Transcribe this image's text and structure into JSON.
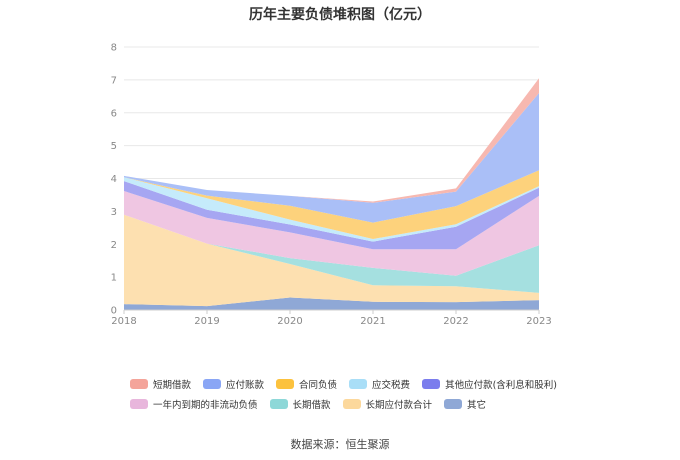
{
  "chart_data": {
    "type": "area",
    "stacked": true,
    "title": "历年主要负债堆积图（亿元）",
    "categories": [
      "2018",
      "2019",
      "2020",
      "2021",
      "2022",
      "2023"
    ],
    "ylim": [
      0,
      8
    ],
    "yticks": [
      "0",
      "1",
      "2",
      "3",
      "4",
      "5",
      "6",
      "7",
      "8"
    ],
    "grid": true,
    "legend_position": "bottom",
    "series": [
      {
        "name": "其它",
        "color": "#8fa8d6",
        "values": [
          0.18,
          0.12,
          0.38,
          0.25,
          0.24,
          0.3
        ]
      },
      {
        "name": "长期应付款合计",
        "color": "#fde0b0",
        "values": [
          2.72,
          1.9,
          1.02,
          0.5,
          0.48,
          0.22
        ]
      },
      {
        "name": "长期借款",
        "color": "#a5e0e0",
        "values": [
          0.0,
          0.0,
          0.18,
          0.53,
          0.32,
          1.45
        ]
      },
      {
        "name": "一年内到期的非流动负债",
        "color": "#efc6e2",
        "values": [
          0.72,
          0.78,
          0.78,
          0.57,
          0.81,
          1.5
        ]
      },
      {
        "name": "其他应付款(含利息和股利)",
        "color": "#a6a6f2",
        "values": [
          0.3,
          0.25,
          0.24,
          0.23,
          0.68,
          0.25
        ]
      },
      {
        "name": "应交税费",
        "color": "#c5ebfb",
        "values": [
          0.12,
          0.35,
          0.15,
          0.08,
          0.08,
          0.05
        ]
      },
      {
        "name": "合同负债",
        "color": "#fdd27c",
        "values": [
          0.0,
          0.08,
          0.42,
          0.5,
          0.55,
          0.48
        ]
      },
      {
        "name": "应付账款",
        "color": "#aabff7",
        "values": [
          0.04,
          0.17,
          0.3,
          0.6,
          0.44,
          2.35
        ]
      },
      {
        "name": "短期借款",
        "color": "#f7b8b0",
        "values": [
          0.0,
          0.0,
          0.0,
          0.04,
          0.1,
          0.45
        ]
      }
    ]
  },
  "legend": [
    {
      "label": "短期借款",
      "color": "#f4a49a"
    },
    {
      "label": "应付账款",
      "color": "#8aa6f5"
    },
    {
      "label": "合同负债",
      "color": "#fcc23e"
    },
    {
      "label": "应交税费",
      "color": "#a9def7"
    },
    {
      "label": "其他应付款(含利息和股利)",
      "color": "#7b7ded"
    },
    {
      "label": "一年内到期的非流动负债",
      "color": "#e8b6dc"
    },
    {
      "label": "长期借款",
      "color": "#8ed8d8"
    },
    {
      "label": "长期应付款合计",
      "color": "#fcd89c"
    },
    {
      "label": "其它",
      "color": "#8fa8d6"
    }
  ],
  "source": "数据来源：恒生聚源"
}
